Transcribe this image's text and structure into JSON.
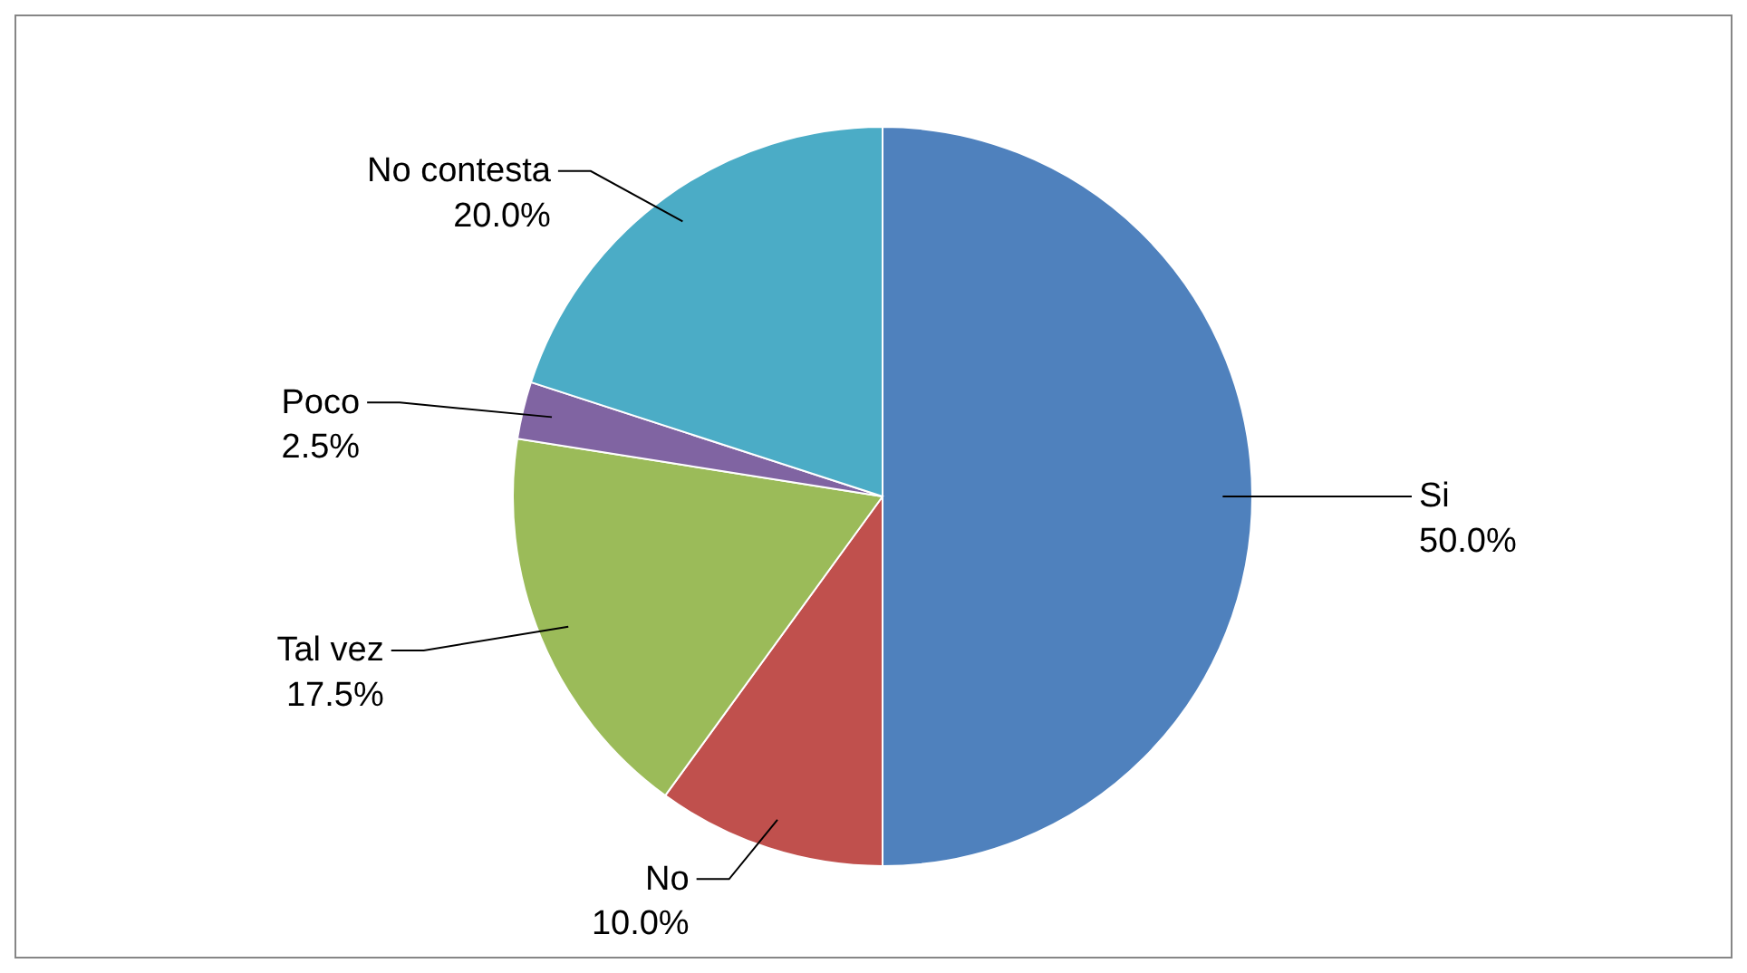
{
  "chart_data": {
    "type": "pie",
    "categories": [
      "Si",
      "No",
      "Tal vez",
      "Poco",
      "No contesta"
    ],
    "values": [
      50,
      10,
      17.5,
      2.5,
      20
    ],
    "colors": [
      "#4f81bd",
      "#c0504d",
      "#9bbb59",
      "#8064a2",
      "#4bacc6"
    ],
    "value_labels": [
      "50.0%",
      "10.0%",
      "17.5%",
      "2.5%",
      "20.0%"
    ],
    "legend": false
  }
}
